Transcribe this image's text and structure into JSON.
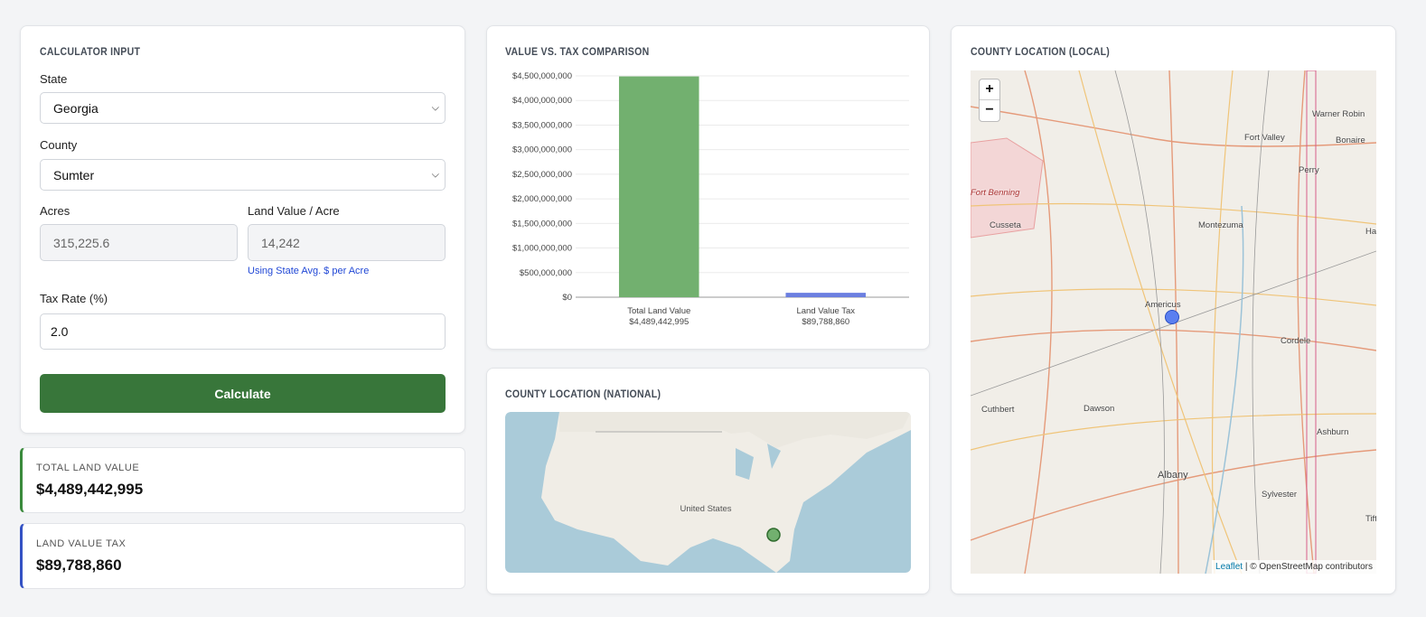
{
  "calculator": {
    "title": "CALCULATOR INPUT",
    "state_label": "State",
    "state": "Georgia",
    "county_label": "County",
    "county": "Sumter",
    "acres_label": "Acres",
    "acres": "315,225.6",
    "land_value_label": "Land Value / Acre",
    "land_value": "14,242",
    "hint": "Using State Avg. $ per Acre",
    "tax_rate_label": "Tax Rate (%)",
    "tax_rate": "2.0",
    "button": "Calculate"
  },
  "results": [
    {
      "label": "TOTAL LAND VALUE",
      "value": "$4,489,442,995"
    },
    {
      "label": "LAND VALUE TAX",
      "value": "$89,788,860"
    }
  ],
  "chart_data": {
    "type": "bar",
    "title": "VALUE VS. TAX COMPARISON",
    "categories": [
      "Total Land Value",
      "Land Value Tax"
    ],
    "values": [
      4489442995,
      89788860
    ],
    "value_labels": [
      "$4,489,442,995",
      "$89,788,860"
    ],
    "colors": [
      "#72b06f",
      "#6b7fe0"
    ],
    "ylim": [
      0,
      4500000000
    ],
    "yticks": [
      {
        "value": 0,
        "label": "$0"
      },
      {
        "value": 500000000,
        "label": "$500,000,000"
      },
      {
        "value": 1000000000,
        "label": "$1,000,000,000"
      },
      {
        "value": 1500000000,
        "label": "$1,500,000,000"
      },
      {
        "value": 2000000000,
        "label": "$2,000,000,000"
      },
      {
        "value": 2500000000,
        "label": "$2,500,000,000"
      },
      {
        "value": 3000000000,
        "label": "$3,000,000,000"
      },
      {
        "value": 3500000000,
        "label": "$3,500,000,000"
      },
      {
        "value": 4000000000,
        "label": "$4,000,000,000"
      },
      {
        "value": 4500000000,
        "label": "$4,500,000,000"
      }
    ],
    "grid": true
  },
  "national_map": {
    "title": "COUNTY LOCATION (NATIONAL)",
    "label": "United States"
  },
  "local_map": {
    "title": "COUNTY LOCATION (LOCAL)",
    "zoom_in": "+",
    "zoom_out": "−",
    "labels": [
      "Warner Robin",
      "Fort Valley",
      "Bonaire",
      "Perry",
      "Fort Benning",
      "Cusseta",
      "Montezuma",
      "Ha",
      "Americus",
      "Cordele",
      "Cuthbert",
      "Dawson",
      "Ashburn",
      "Albany",
      "Sylvester",
      "Tift"
    ],
    "attribution_link": "Leaflet",
    "attribution": "| © OpenStreetMap contributors"
  }
}
